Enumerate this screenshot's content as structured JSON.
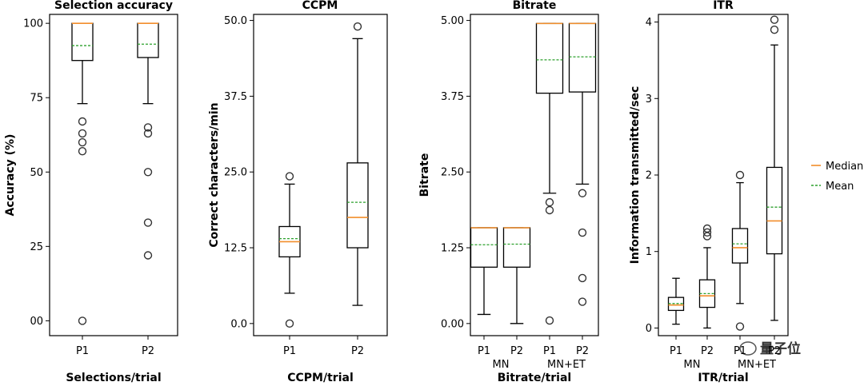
{
  "chart_data": [
    {
      "type": "box",
      "title": "Selection accuracy",
      "xlabel": "Selections/trial",
      "ylabel": "Accuracy (%)",
      "ylim": [
        -5,
        103
      ],
      "yticks": [
        0,
        25,
        50,
        75,
        100
      ],
      "ytick_labels": [
        "00",
        "25",
        "50",
        "75",
        "100"
      ],
      "categories": [
        "P1",
        "P2"
      ],
      "groups": [],
      "boxes": [
        {
          "category": "P1",
          "whisker_low": 73,
          "q1": 87.5,
          "median": 100,
          "mean": 92.5,
          "q3": 100,
          "whisker_high": 100,
          "outliers": [
            67,
            63,
            60,
            57,
            0
          ]
        },
        {
          "category": "P2",
          "whisker_low": 73,
          "q1": 88.5,
          "median": 100,
          "mean": 93,
          "q3": 100,
          "whisker_high": 100,
          "outliers": [
            65,
            63,
            50,
            33,
            22
          ]
        }
      ]
    },
    {
      "type": "box",
      "title": "CCPM",
      "xlabel": "CCPM/trial",
      "ylabel": "Correct characters/min",
      "ylim": [
        -2,
        51
      ],
      "yticks": [
        0,
        12.5,
        25,
        37.5,
        50
      ],
      "ytick_labels": [
        "0.0",
        "12.5",
        "25.0",
        "37.5",
        "50.0"
      ],
      "categories": [
        "P1",
        "P2"
      ],
      "groups": [],
      "boxes": [
        {
          "category": "P1",
          "whisker_low": 5,
          "q1": 11,
          "median": 13.5,
          "mean": 14,
          "q3": 16,
          "whisker_high": 23,
          "outliers": [
            24.3,
            0
          ]
        },
        {
          "category": "P2",
          "whisker_low": 3,
          "q1": 12.5,
          "median": 17.5,
          "mean": 20,
          "q3": 26.5,
          "whisker_high": 47,
          "outliers": [
            49
          ]
        }
      ]
    },
    {
      "type": "box",
      "title": "Bitrate",
      "xlabel": "Bitrate/trial",
      "ylabel": "Bitrate",
      "ylim": [
        -0.2,
        5.1
      ],
      "yticks": [
        0,
        1.25,
        2.5,
        3.75,
        5
      ],
      "ytick_labels": [
        "0.00",
        "1.25",
        "2.50",
        "3.75",
        "5.00"
      ],
      "categories": [
        "P1",
        "P2",
        "P1",
        "P2"
      ],
      "groups": [
        "MN",
        "MN+ET"
      ],
      "boxes": [
        {
          "category": "P1",
          "whisker_low": 0.15,
          "q1": 0.93,
          "median": 1.58,
          "mean": 1.3,
          "q3": 1.58,
          "whisker_high": 1.58,
          "outliers": []
        },
        {
          "category": "P2",
          "whisker_low": 0,
          "q1": 0.93,
          "median": 1.58,
          "mean": 1.31,
          "q3": 1.58,
          "whisker_high": 1.58,
          "outliers": []
        },
        {
          "category": "P1",
          "whisker_low": 2.15,
          "q1": 3.8,
          "median": 4.95,
          "mean": 4.35,
          "q3": 4.95,
          "whisker_high": 4.95,
          "outliers": [
            2.0,
            1.87,
            0.05
          ]
        },
        {
          "category": "P2",
          "whisker_low": 2.3,
          "q1": 3.82,
          "median": 4.95,
          "mean": 4.4,
          "q3": 4.95,
          "whisker_high": 4.95,
          "outliers": [
            2.15,
            1.5,
            0.75,
            0.36
          ]
        }
      ]
    },
    {
      "type": "box",
      "title": "ITR",
      "xlabel": "ITR/trial",
      "ylabel": "Information transmitted/sec",
      "ylim": [
        -0.1,
        4.1
      ],
      "yticks": [
        0,
        1,
        2,
        3,
        4
      ],
      "ytick_labels": [
        "0",
        "1",
        "2",
        "3",
        "4"
      ],
      "categories": [
        "P1",
        "P2",
        "P1",
        "P2"
      ],
      "groups": [
        "MN",
        "MN+ET"
      ],
      "boxes": [
        {
          "category": "P1",
          "whisker_low": 0.05,
          "q1": 0.23,
          "median": 0.3,
          "mean": 0.32,
          "q3": 0.4,
          "whisker_high": 0.65,
          "outliers": []
        },
        {
          "category": "P2",
          "whisker_low": 0,
          "q1": 0.27,
          "median": 0.42,
          "mean": 0.45,
          "q3": 0.63,
          "whisker_high": 1.05,
          "outliers": [
            1.3,
            1.25,
            1.2
          ]
        },
        {
          "category": "P1",
          "whisker_low": 0.32,
          "q1": 0.85,
          "median": 1.05,
          "mean": 1.1,
          "q3": 1.3,
          "whisker_high": 1.9,
          "outliers": [
            2.0,
            0.02
          ]
        },
        {
          "category": "P2",
          "whisker_low": 0.1,
          "q1": 0.97,
          "median": 1.4,
          "mean": 1.58,
          "q3": 2.1,
          "whisker_high": 3.7,
          "outliers": [
            4.03,
            3.9
          ]
        }
      ]
    }
  ],
  "legend": {
    "median_label": "Median",
    "mean_label": "Mean",
    "median_color": "#f28e2b",
    "mean_color": "#2ca02c"
  },
  "watermark": "量子位"
}
